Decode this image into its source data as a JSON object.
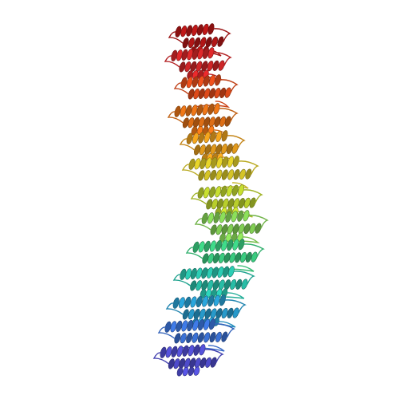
{
  "image": {
    "subject": "protein-ribbon-structure",
    "background_color": "#ffffff",
    "coloring": "rainbow-n-to-c",
    "palette": [
      "#4b3fd6",
      "#3f7be8",
      "#2bb3d8",
      "#2fd6a8",
      "#6ee06a",
      "#b8e03a",
      "#e8d52a",
      "#f5a61e",
      "#f0661a",
      "#e0282a",
      "#c01818"
    ],
    "domains": [
      {
        "color": "#c01818"
      },
      {
        "color": "#e0282a"
      },
      {
        "color": "#f0501c"
      },
      {
        "color": "#f07818"
      },
      {
        "color": "#f5a61e"
      },
      {
        "color": "#e8d52a"
      },
      {
        "color": "#c8e030"
      },
      {
        "color": "#8ce05a"
      },
      {
        "color": "#3fdc8a"
      },
      {
        "color": "#2bcdb4"
      },
      {
        "color": "#2aa6dc"
      },
      {
        "color": "#3f7be8"
      },
      {
        "color": "#5552dc"
      }
    ]
  }
}
